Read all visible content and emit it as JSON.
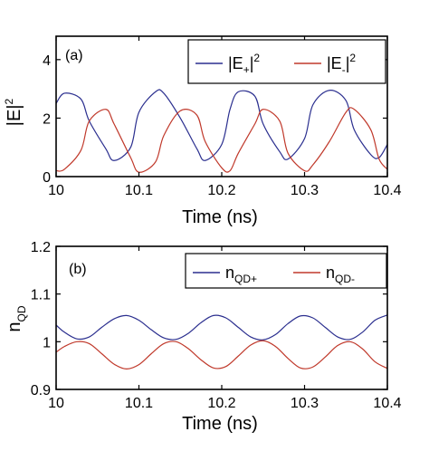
{
  "colors": {
    "series_plus": "#2b2f8f",
    "series_minus": "#c0392b",
    "axes": "#000000"
  },
  "chart_data": [
    {
      "type": "line",
      "panel_label": "(a)",
      "xlabel": "Time (ns)",
      "ylabel": "|E|²",
      "ylabel_parts": {
        "base": "|E|",
        "sup": "2"
      },
      "xlim": [
        10,
        10.4
      ],
      "ylim": [
        0,
        4.8
      ],
      "xticks": [
        "10",
        "10.1",
        "10.2",
        "10.3",
        "10.4"
      ],
      "yticks": [
        "0",
        "2",
        "4"
      ],
      "legend_position": "top-right",
      "series": [
        {
          "name": "|E+|²",
          "legend": {
            "pre": "|E",
            "sub": "+",
            "post": "|",
            "sup": "2"
          },
          "color": "#2b2f8f",
          "x": [
            10.0,
            10.01,
            10.03,
            10.04,
            10.06,
            10.07,
            10.09,
            10.1,
            10.12,
            10.13,
            10.15,
            10.17,
            10.18,
            10.2,
            10.21,
            10.22,
            10.24,
            10.25,
            10.27,
            10.28,
            10.3,
            10.31,
            10.33,
            10.35,
            10.36,
            10.38,
            10.39,
            10.4
          ],
          "y": [
            2.5,
            2.85,
            2.65,
            1.9,
            0.95,
            0.55,
            1.0,
            2.2,
            2.9,
            2.85,
            2.0,
            0.95,
            0.55,
            1.1,
            2.3,
            2.9,
            2.75,
            1.8,
            0.85,
            0.6,
            1.3,
            2.45,
            2.95,
            2.6,
            1.6,
            0.75,
            0.65,
            1.1
          ]
        },
        {
          "name": "|E-|²",
          "legend": {
            "pre": "|E",
            "sub": "-",
            "post": "|",
            "sup": "2"
          },
          "color": "#c0392b",
          "x": [
            10.0,
            10.01,
            10.03,
            10.04,
            10.06,
            10.07,
            10.09,
            10.1,
            10.12,
            10.13,
            10.15,
            10.17,
            10.18,
            10.2,
            10.21,
            10.22,
            10.24,
            10.25,
            10.27,
            10.28,
            10.3,
            10.31,
            10.33,
            10.35,
            10.36,
            10.38,
            10.39,
            10.4
          ],
          "y": [
            0.2,
            0.25,
            0.9,
            1.9,
            2.3,
            1.8,
            0.65,
            0.15,
            0.5,
            1.4,
            2.25,
            2.1,
            1.2,
            0.3,
            0.2,
            0.8,
            1.8,
            2.3,
            1.9,
            0.8,
            0.2,
            0.4,
            1.2,
            2.2,
            2.3,
            1.6,
            0.6,
            0.25
          ]
        }
      ]
    },
    {
      "type": "line",
      "panel_label": "(b)",
      "xlabel": "Time (ns)",
      "ylabel": "nQD",
      "ylabel_parts": {
        "base": "n",
        "sub": "QD"
      },
      "xlim": [
        10,
        10.4
      ],
      "ylim": [
        0.9,
        1.2
      ],
      "xticks": [
        "10",
        "10.1",
        "10.2",
        "10.3",
        "10.4"
      ],
      "yticks": [
        "0.9",
        "1",
        "1.1",
        "1.2"
      ],
      "legend_position": "top-right",
      "series": [
        {
          "name": "nQD+",
          "legend": {
            "pre": "n",
            "sub": "QD+",
            "post": "",
            "sup": ""
          },
          "color": "#2b2f8f",
          "x": [
            10.0,
            10.01,
            10.025,
            10.04,
            10.055,
            10.07,
            10.085,
            10.1,
            10.115,
            10.13,
            10.145,
            10.16,
            10.175,
            10.19,
            10.205,
            10.22,
            10.235,
            10.25,
            10.265,
            10.28,
            10.295,
            10.31,
            10.325,
            10.34,
            10.355,
            10.37,
            10.385,
            10.4
          ],
          "y": [
            1.035,
            1.02,
            1.006,
            1.01,
            1.03,
            1.048,
            1.055,
            1.045,
            1.025,
            1.008,
            1.005,
            1.018,
            1.04,
            1.055,
            1.05,
            1.03,
            1.01,
            1.004,
            1.015,
            1.038,
            1.054,
            1.05,
            1.03,
            1.01,
            1.005,
            1.02,
            1.045,
            1.056
          ]
        },
        {
          "name": "nQD-",
          "legend": {
            "pre": "n",
            "sub": "QD-",
            "post": "",
            "sup": ""
          },
          "color": "#c0392b",
          "x": [
            10.0,
            10.01,
            10.025,
            10.04,
            10.055,
            10.07,
            10.085,
            10.1,
            10.115,
            10.13,
            10.145,
            10.16,
            10.175,
            10.19,
            10.205,
            10.22,
            10.235,
            10.25,
            10.265,
            10.28,
            10.295,
            10.31,
            10.325,
            10.34,
            10.355,
            10.37,
            10.385,
            10.4
          ],
          "y": [
            0.978,
            0.99,
            1.0,
            0.996,
            0.975,
            0.953,
            0.943,
            0.952,
            0.975,
            0.996,
            1.0,
            0.985,
            0.962,
            0.945,
            0.948,
            0.97,
            0.993,
            1.002,
            0.99,
            0.965,
            0.945,
            0.947,
            0.968,
            0.992,
            1.0,
            0.985,
            0.958,
            0.944
          ]
        }
      ]
    }
  ]
}
